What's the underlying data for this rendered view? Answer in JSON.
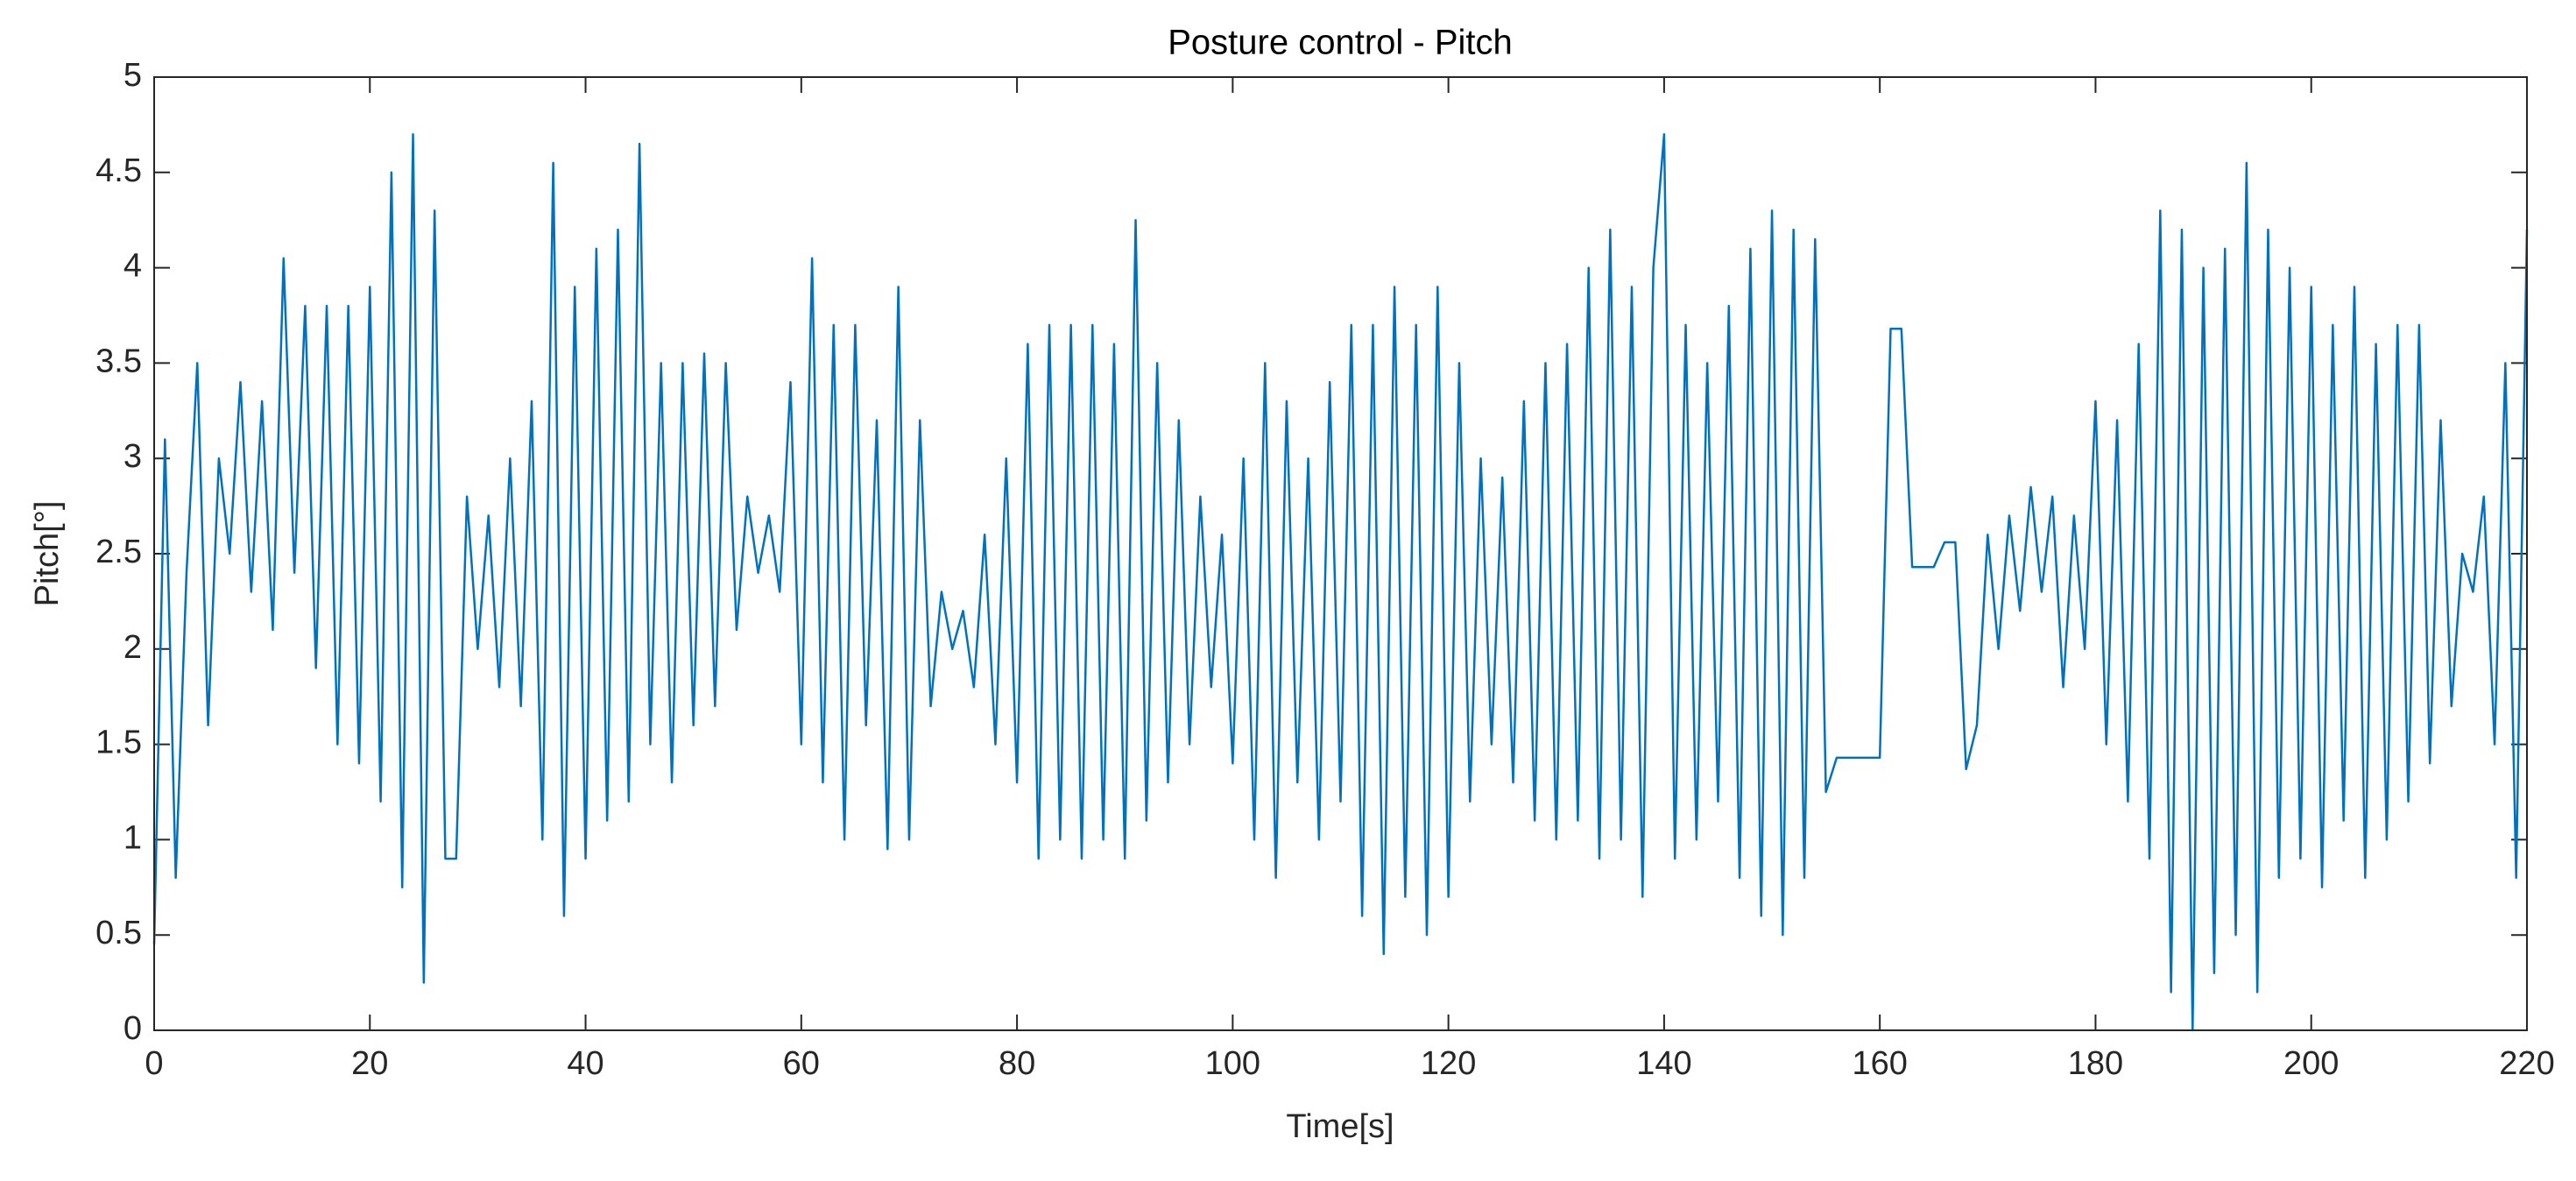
{
  "chart_data": {
    "type": "line",
    "title": "Posture control - Pitch",
    "xlabel": "Time[s]",
    "ylabel": "Pitch[°]",
    "x": [
      0,
      1,
      2,
      3,
      4,
      5,
      6,
      7,
      8,
      9,
      10,
      11,
      12,
      13,
      14,
      15,
      16,
      17,
      18,
      19,
      20,
      21,
      22,
      23,
      24,
      25,
      26,
      27,
      28,
      29,
      30,
      31,
      32,
      33,
      34,
      35,
      36,
      37,
      38,
      39,
      40,
      41,
      42,
      43,
      44,
      45,
      46,
      47,
      48,
      49,
      50,
      51,
      52,
      53,
      54,
      55,
      56,
      57,
      58,
      59,
      60,
      61,
      62,
      63,
      64,
      65,
      66,
      67,
      68,
      69,
      70,
      71,
      72,
      73,
      74,
      75,
      76,
      77,
      78,
      79,
      80,
      81,
      82,
      83,
      84,
      85,
      86,
      87,
      88,
      89,
      90,
      91,
      92,
      93,
      94,
      95,
      96,
      97,
      98,
      99,
      100,
      101,
      102,
      103,
      104,
      105,
      106,
      107,
      108,
      109,
      110,
      111,
      112,
      113,
      114,
      115,
      116,
      117,
      118,
      119,
      120,
      121,
      122,
      123,
      124,
      125,
      126,
      127,
      128,
      129,
      130,
      131,
      132,
      133,
      134,
      135,
      136,
      137,
      138,
      139,
      140,
      141,
      142,
      143,
      144,
      145,
      146,
      147,
      148,
      149,
      150,
      151,
      152,
      153,
      154,
      155,
      156,
      157,
      158,
      159,
      160,
      161,
      162,
      163,
      164,
      165,
      166,
      167,
      168,
      169,
      170,
      171,
      172,
      173,
      174,
      175,
      176,
      177,
      178,
      179,
      180,
      181,
      182,
      183,
      184,
      185,
      186,
      187,
      188,
      189,
      190,
      191,
      192,
      193,
      194,
      195,
      196,
      197,
      198,
      199,
      200,
      201,
      202,
      203,
      204,
      205,
      206,
      207,
      208,
      209,
      210,
      211,
      212,
      213,
      214,
      215,
      216,
      217,
      218,
      219,
      220
    ],
    "series": [
      {
        "name": "Pitch",
        "color": "#0072bd",
        "values": [
          0.45,
          3.1,
          0.8,
          2.4,
          3.5,
          1.6,
          3.0,
          2.5,
          3.4,
          2.3,
          3.3,
          2.1,
          4.05,
          2.4,
          3.8,
          1.9,
          3.8,
          1.5,
          3.8,
          1.4,
          3.9,
          1.2,
          4.5,
          0.75,
          4.7,
          0.25,
          4.3,
          0.9,
          0.9,
          2.8,
          2.0,
          2.7,
          1.8,
          3.0,
          1.7,
          3.3,
          1.0,
          4.55,
          0.6,
          3.9,
          0.9,
          4.1,
          1.1,
          4.2,
          1.2,
          4.65,
          1.5,
          3.5,
          1.3,
          3.5,
          1.6,
          3.55,
          1.7,
          3.5,
          2.1,
          2.8,
          2.4,
          2.7,
          2.3,
          3.4,
          1.5,
          4.05,
          1.3,
          3.7,
          1.0,
          3.7,
          1.6,
          3.2,
          0.95,
          3.9,
          1.0,
          3.2,
          1.7,
          2.3,
          2.0,
          2.2,
          1.8,
          2.6,
          1.5,
          3.0,
          1.3,
          3.6,
          0.9,
          3.7,
          1.0,
          3.7,
          0.9,
          3.7,
          1.0,
          3.6,
          0.9,
          4.25,
          1.1,
          3.5,
          1.3,
          3.2,
          1.5,
          2.8,
          1.8,
          2.6,
          1.4,
          3.0,
          1.0,
          3.5,
          0.8,
          3.3,
          1.3,
          3.0,
          1.0,
          3.4,
          1.2,
          3.7,
          0.6,
          3.7,
          0.4,
          3.9,
          0.7,
          3.7,
          0.5,
          3.9,
          0.7,
          3.5,
          1.2,
          3.0,
          1.5,
          2.9,
          1.3,
          3.3,
          1.1,
          3.5,
          1.0,
          3.6,
          1.1,
          4.0,
          0.9,
          4.2,
          1.0,
          3.9,
          0.7,
          4.0,
          4.7,
          0.9,
          3.7,
          1.0,
          3.5,
          1.2,
          3.8,
          0.8,
          4.1,
          0.6,
          4.3,
          0.5,
          4.2,
          0.8,
          4.15,
          1.25,
          1.43,
          1.43,
          1.43,
          1.43,
          1.43,
          3.68,
          3.68,
          2.43,
          2.43,
          2.43,
          2.56,
          2.56,
          1.37,
          1.6,
          2.6,
          2.0,
          2.7,
          2.2,
          2.85,
          2.3,
          2.8,
          1.8,
          2.7,
          2.0,
          3.3,
          1.5,
          3.2,
          1.2,
          3.6,
          0.9,
          4.3,
          0.2,
          4.2,
          0.0,
          4.0,
          0.3,
          4.1,
          0.5,
          4.55,
          0.2,
          4.2,
          0.8,
          4.0,
          0.9,
          3.9,
          0.75,
          3.7,
          1.1,
          3.9,
          0.8,
          3.6,
          1.0,
          3.7,
          1.2,
          3.7,
          1.4,
          3.2,
          1.7,
          2.5,
          2.3,
          2.8,
          1.5,
          3.5,
          0.8,
          4.2
        ]
      }
    ],
    "xlim": [
      0,
      220
    ],
    "xticks": [
      0,
      20,
      40,
      60,
      80,
      100,
      120,
      140,
      160,
      180,
      200,
      220
    ],
    "ylim": [
      0,
      5
    ],
    "yticks": [
      0,
      0.5,
      1,
      1.5,
      2,
      2.5,
      3,
      3.5,
      4,
      4.5,
      5
    ],
    "grid": false
  }
}
